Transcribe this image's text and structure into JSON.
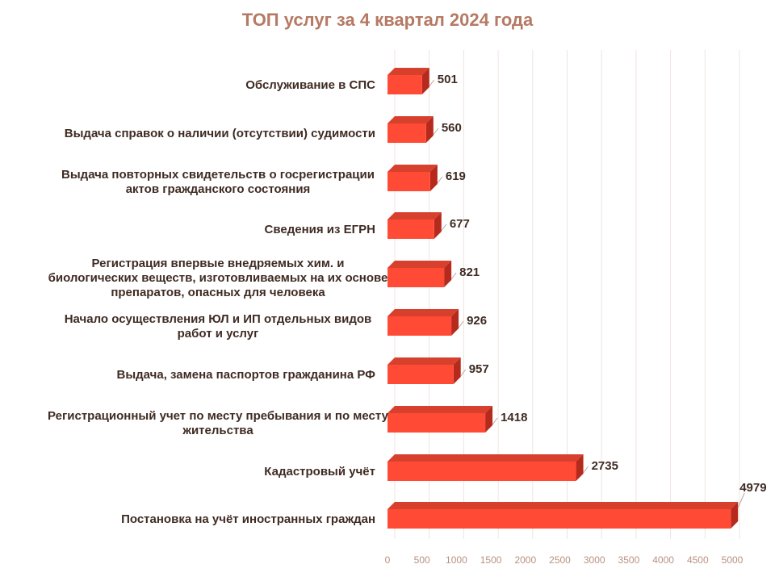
{
  "chart_data": {
    "type": "bar",
    "orientation": "horizontal",
    "title": "ТОП услуг за 4 квартал 2024 года",
    "categories": [
      "Обслуживание в СПС",
      "Выдача справок о наличии (отсутствии) судимости",
      "Выдача повторных свидетельств о госрегистрации актов гражданского состояния",
      "Сведения из ЕГРН",
      "Регистрация впервые внедряемых хим. и биологических веществ, изготовливаемых на их основе препаратов, опасных для человека",
      "Начало осуществления ЮЛ и ИП отдельных видов работ и услуг",
      "Выдача, замена паспортов гражданина РФ",
      "Регистрационный учет по месту пребывания и по месту жительства",
      "Кадастровый учёт",
      "Постановка на учёт иностранных граждан"
    ],
    "category_lines": [
      [
        "Обслуживание в СПС"
      ],
      [
        "Выдача справок о наличии (отсутствии) судимости"
      ],
      [
        "Выдача повторных свидетельств о госрегистрации",
        "актов гражданского состояния"
      ],
      [
        "Сведения из ЕГРН"
      ],
      [
        "Регистрация впервые внедряемых хим. и",
        "биологических веществ, изготовливаемых на их основе",
        "препаратов, опасных для человека"
      ],
      [
        "Начало осуществления ЮЛ и ИП отдельных видов",
        "работ и услуг"
      ],
      [
        "Выдача, замена паспортов гражданина РФ"
      ],
      [
        "Регистрационный учет по месту пребывания и по месту",
        "жительства"
      ],
      [
        "Кадастровый учёт"
      ],
      [
        "Постановка на учёт иностранных граждан"
      ]
    ],
    "values": [
      501,
      560,
      619,
      677,
      821,
      926,
      957,
      1418,
      2735,
      4979
    ],
    "xlim": [
      0,
      5000
    ],
    "xticks": [
      0,
      500,
      1000,
      1500,
      2000,
      2500,
      3000,
      3500,
      4000,
      4500,
      5000
    ],
    "grid": true,
    "bar_color": "#ff4a35",
    "bar_side_color": "#b52a1c",
    "bar_top_color": "#d8402e",
    "title_color": "#b57a64",
    "label_color": "#3f2b23",
    "tick_color": "#b9917f"
  }
}
